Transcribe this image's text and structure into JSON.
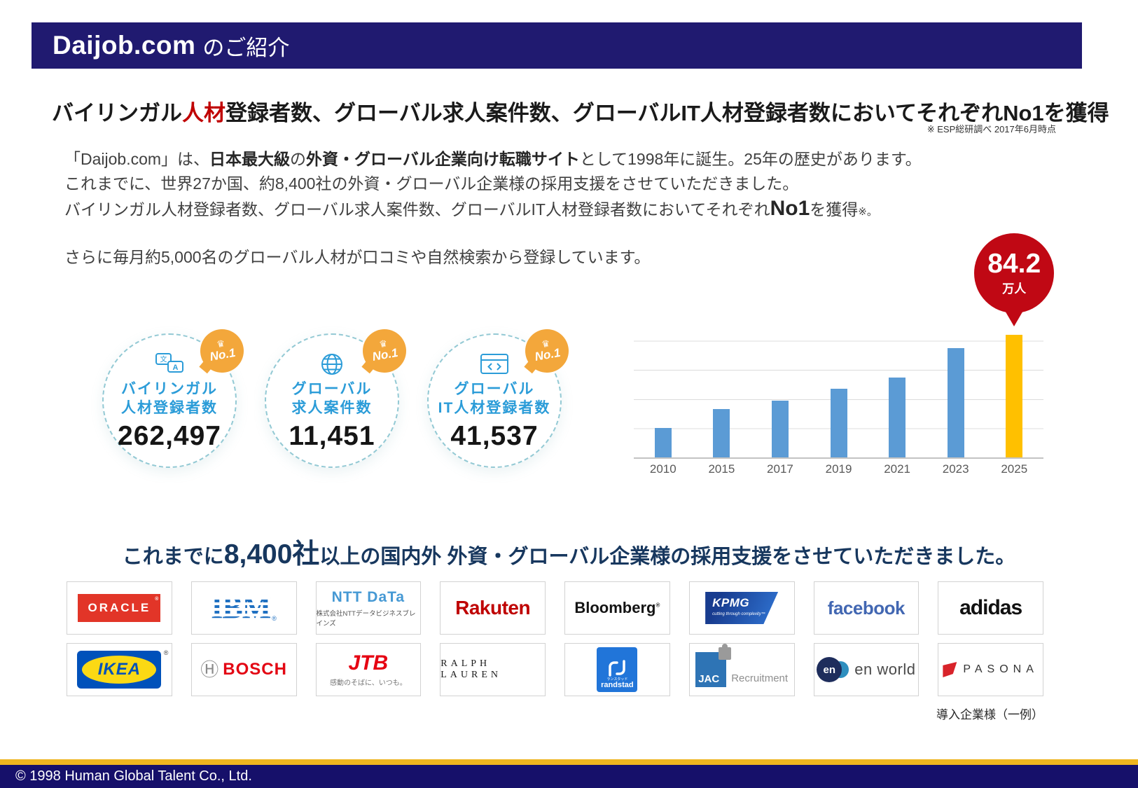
{
  "header": {
    "brand": "Daijob.com",
    "suffix": "のご紹介"
  },
  "headline": {
    "part1": "バイリンガル",
    "highlight": "人材",
    "part2": "登録者数、グローバル求人案件数、グローバルIT人材登録者数においてそれぞれNo1を獲得",
    "note": "※ ESP総研調べ 2017年6月時点",
    "highlight_color": "#C00000"
  },
  "intro": {
    "p1_pre": "「Daijob.com」は、",
    "p1_bold1": "日本最大級",
    "p1_mid": "の",
    "p1_bold2": "外資・グローバル企業向け転職サイト",
    "p1_post": "として1998年に誕生。25年の歴史があります。",
    "p2": "これまでに、世界27か国、約8,400社の外資・グローバル企業様の採用支援をさせていただきました。",
    "p3_pre": "バイリンガル人材登録者数、グローバル求人案件数、グローバルIT人材登録者数においてそれぞれ",
    "p3_bold": "No1",
    "p3_post": "を獲得",
    "p3_ref": "※。",
    "p4": "さらに毎月約5,000名のグローバル人材が口コミや自然検索から登録しています。"
  },
  "stats": [
    {
      "icon": "translation-icon",
      "label_line1": "バイリンガル",
      "label_line2": "人材登録者数",
      "value": "262,497",
      "badge": "No.1"
    },
    {
      "icon": "globe-icon",
      "label_line1": "グローバル",
      "label_line2": "求人案件数",
      "value": "11,451",
      "badge": "No.1"
    },
    {
      "icon": "code-window-icon",
      "label_line1": "グローバル",
      "label_line2": "IT人材登録者数",
      "value": "41,537",
      "badge": "No.1"
    }
  ],
  "chart_data": {
    "type": "bar",
    "title": "",
    "xlabel": "",
    "ylabel": "",
    "categories": [
      "2010",
      "2015",
      "2017",
      "2019",
      "2021",
      "2023",
      "2025"
    ],
    "values": [
      20,
      33,
      39,
      47,
      55,
      75,
      84.2
    ],
    "unit": "万人",
    "ylim": [
      0,
      100
    ],
    "gridline_interval": 20,
    "grid": true,
    "legend": false,
    "bar_color": "#5B9BD5",
    "highlight_index": 6,
    "highlight_color": "#FFC000",
    "callout": {
      "value": "84.2",
      "unit": "万人",
      "color": "#C00814"
    }
  },
  "clients_heading": {
    "pre": "これまでに",
    "bold": "8,400社",
    "post": "以上の国内外 外資・グローバル企業様の採用支援をさせていただきました。"
  },
  "logos": {
    "oracle": {
      "text": "ORACLE",
      "mark": "®"
    },
    "ibm": {
      "text": "IBM",
      "mark": "®"
    },
    "nttdata": {
      "main": "NTT DaTa",
      "sub": "株式会社NTTデータビジネスブレインズ"
    },
    "rakuten": {
      "text": "Rakuten"
    },
    "bloomberg": {
      "text": "Bloomberg",
      "mark": "®"
    },
    "kpmg": {
      "text": "KPMG",
      "tagline": "cutting through complexity™"
    },
    "facebook": {
      "text": "facebook"
    },
    "adidas": {
      "text": "adidas"
    },
    "ikea": {
      "text": "IKEA",
      "mark": "®"
    },
    "bosch": {
      "mark": "Ⓗ",
      "text": "BOSCH"
    },
    "jtb": {
      "text": "JTB",
      "tagline": "感動のそばに、いつも。"
    },
    "ralphlauren": {
      "text": "RALPH LAUREN"
    },
    "randstad": {
      "katakana": "ランスタッド",
      "text": "randstad"
    },
    "jac": {
      "main": "JAC",
      "sub": "Recruitment"
    },
    "enworld": {
      "mark": "en",
      "text": "en world"
    },
    "pasona": {
      "text": "PASONA"
    }
  },
  "clients_note": "導入企業様（一例）",
  "footer": {
    "copyright": "© 1998 Human Global Talent  Co., Ltd."
  }
}
